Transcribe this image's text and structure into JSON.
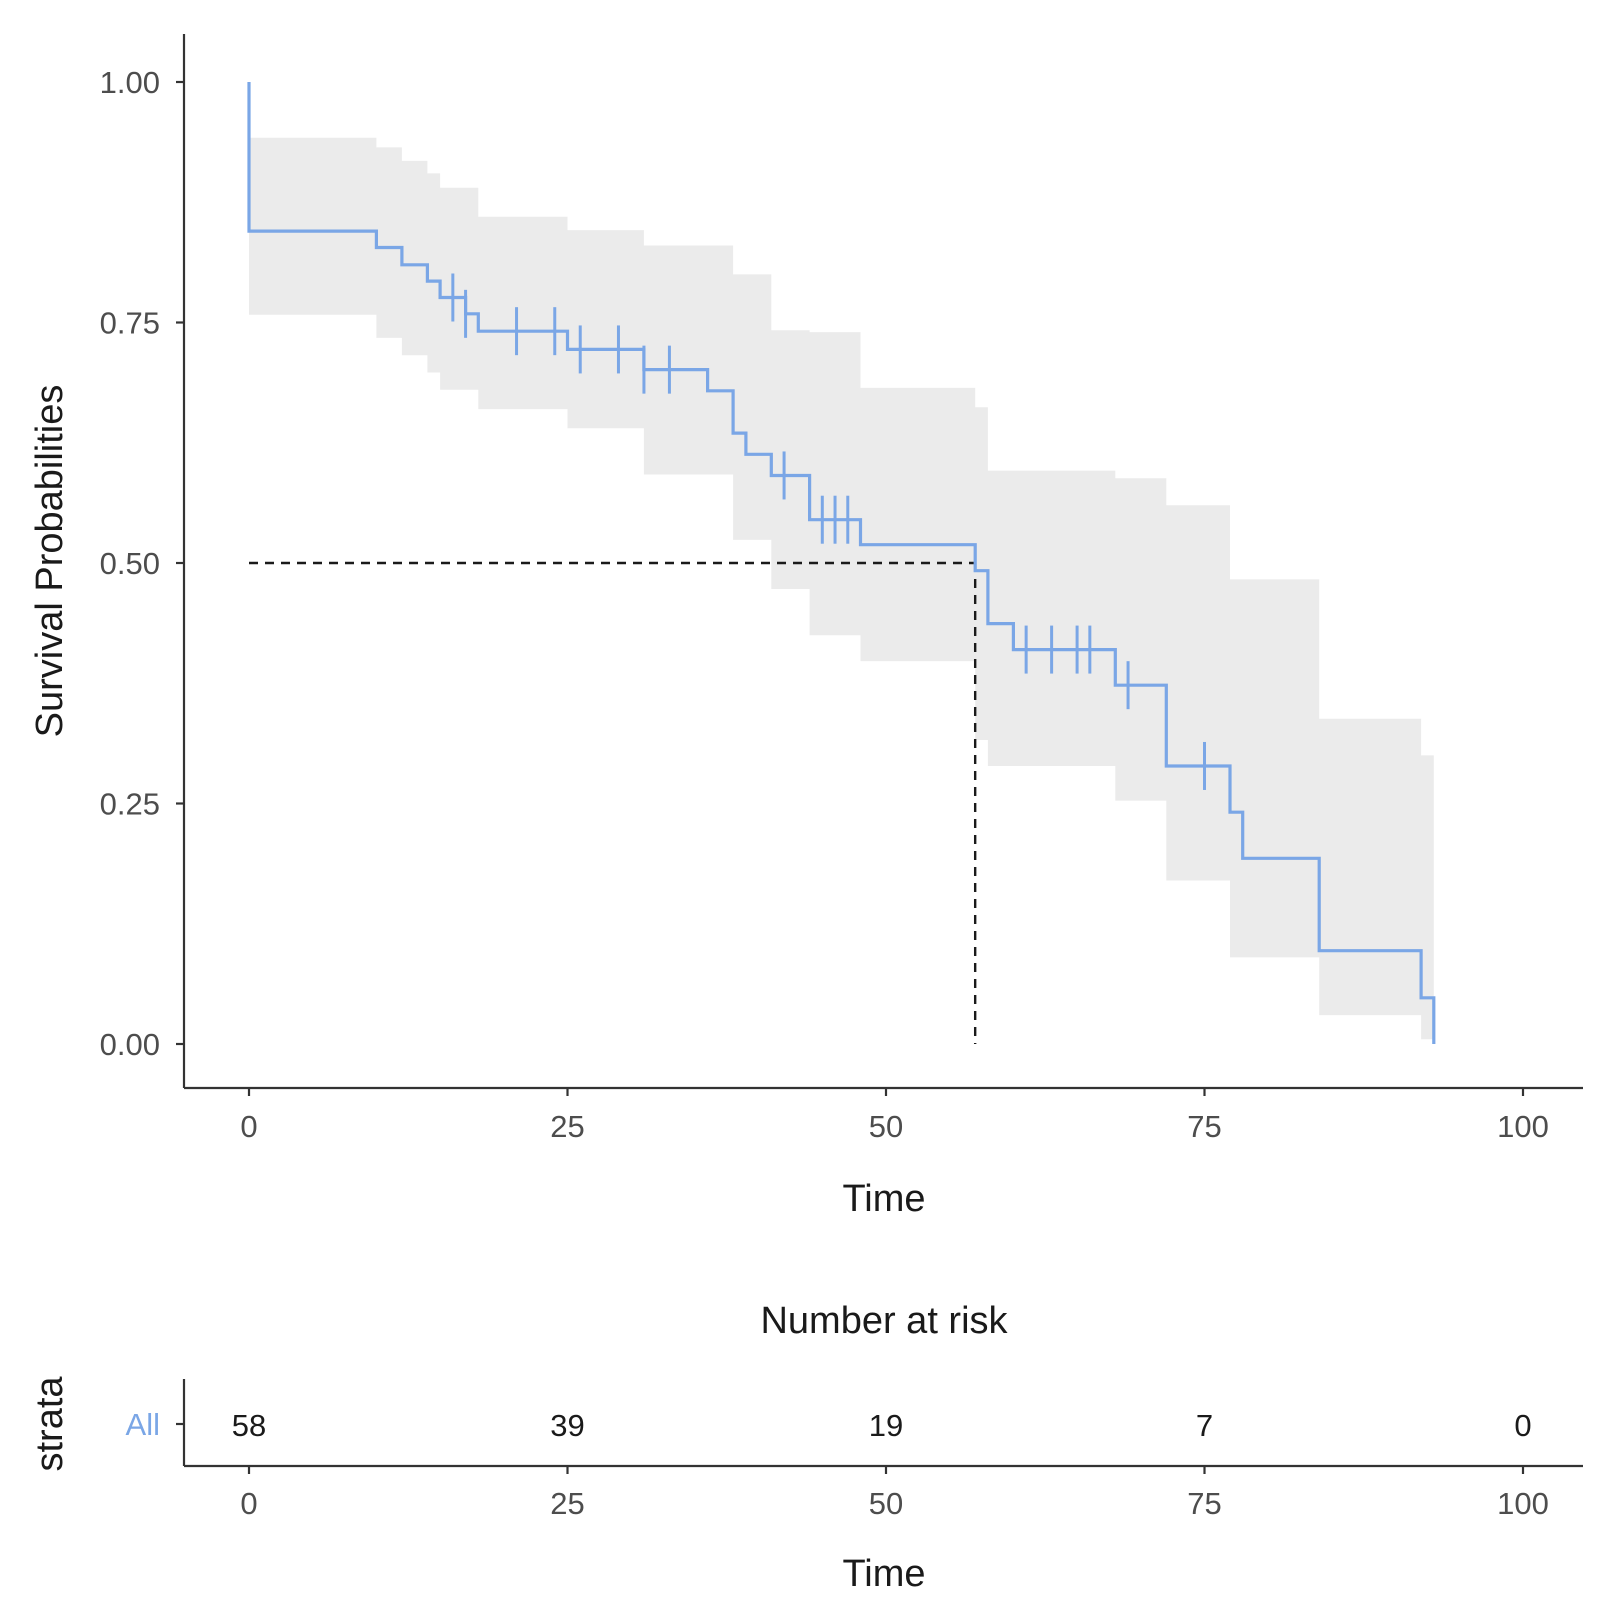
{
  "colors": {
    "curve": "#7aa6e6",
    "band": "#ebebeb",
    "median_line": "#1a1a1a",
    "strata_label": "#7aa6e6"
  },
  "chart_data": [
    {
      "type": "line",
      "subtype": "kaplan-meier",
      "xlabel": "Time",
      "ylabel": "Survival Probabilities",
      "xlim": [
        0,
        100
      ],
      "ylim": [
        0,
        1
      ],
      "x_ticks": [
        0,
        25,
        50,
        75,
        100
      ],
      "x_tick_labels": [
        "0",
        "25",
        "50",
        "75",
        "100"
      ],
      "y_ticks": [
        0,
        0.25,
        0.5,
        0.75,
        1.0
      ],
      "y_tick_labels": [
        "0.00",
        "0.25",
        "0.50",
        "0.75",
        "1.00"
      ],
      "grid": false,
      "series": [
        {
          "name": "All",
          "steps": [
            [
              0,
              1.0
            ],
            [
              0,
              0.845
            ],
            [
              10,
              0.828
            ],
            [
              12,
              0.81
            ],
            [
              14,
              0.793
            ],
            [
              15,
              0.776
            ],
            [
              17,
              0.759
            ],
            [
              18,
              0.741
            ],
            [
              25,
              0.722
            ],
            [
              31,
              0.701
            ],
            [
              36,
              0.679
            ],
            [
              38,
              0.635
            ],
            [
              39,
              0.613
            ],
            [
              41,
              0.591
            ],
            [
              44,
              0.545
            ],
            [
              48,
              0.519
            ],
            [
              57,
              0.492
            ],
            [
              58,
              0.437
            ],
            [
              60,
              0.41
            ],
            [
              68,
              0.373
            ],
            [
              72,
              0.289
            ],
            [
              77,
              0.241
            ],
            [
              78,
              0.193
            ],
            [
              84,
              0.097
            ],
            [
              92,
              0.048
            ],
            [
              93,
              0.0
            ]
          ],
          "confidence_band": [
            [
              0,
              0.758,
              0.942
            ],
            [
              10,
              0.734,
              0.932
            ],
            [
              12,
              0.716,
              0.918
            ],
            [
              14,
              0.698,
              0.905
            ],
            [
              15,
              0.68,
              0.89
            ],
            [
              18,
              0.66,
              0.86
            ],
            [
              25,
              0.64,
              0.846
            ],
            [
              31,
              0.592,
              0.83
            ],
            [
              38,
              0.524,
              0.8
            ],
            [
              41,
              0.473,
              0.742
            ],
            [
              44,
              0.425,
              0.74
            ],
            [
              48,
              0.398,
              0.682
            ],
            [
              57,
              0.316,
              0.662
            ],
            [
              58,
              0.289,
              0.596
            ],
            [
              68,
              0.253,
              0.588
            ],
            [
              72,
              0.17,
              0.56
            ],
            [
              77,
              0.09,
              0.483
            ],
            [
              84,
              0.03,
              0.338
            ],
            [
              92,
              0.005,
              0.3
            ],
            [
              93,
              0.005,
              0.3
            ]
          ],
          "censor_times": [
            16,
            17,
            21,
            24,
            26,
            29,
            31,
            33,
            42,
            45,
            46,
            47,
            61,
            63,
            65,
            66,
            69,
            75
          ]
        }
      ],
      "median": {
        "x": 57,
        "y": 0.5
      }
    },
    {
      "type": "table",
      "title": "Number at risk",
      "ylabel": "strata",
      "xlabel": "Time",
      "x_ticks": [
        0,
        25,
        50,
        75,
        100
      ],
      "x_tick_labels": [
        "0",
        "25",
        "50",
        "75",
        "100"
      ],
      "rows": [
        {
          "strata": "All",
          "counts": [
            "58",
            "39",
            "19",
            "7",
            "0"
          ]
        }
      ]
    }
  ]
}
